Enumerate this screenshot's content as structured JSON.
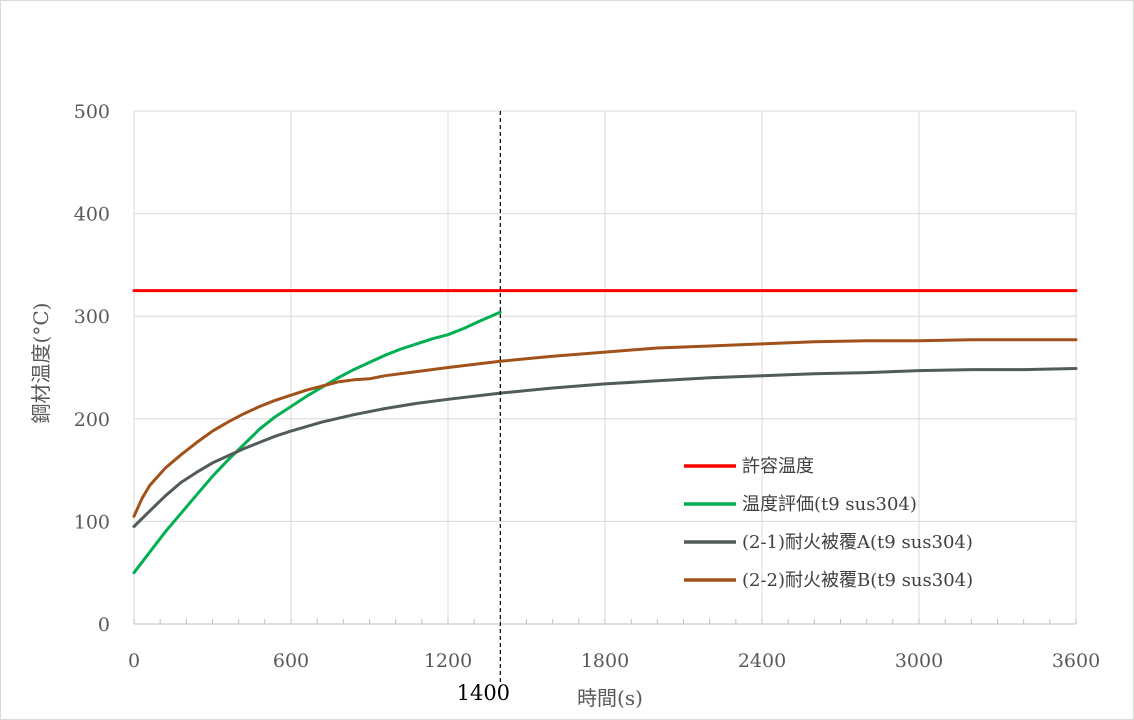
{
  "chart_data": {
    "type": "line",
    "title": "",
    "xlabel": "時間(s)",
    "ylabel": "鋼材温度(°C)",
    "xlim": [
      0,
      3600
    ],
    "ylim": [
      0,
      500
    ],
    "x_ticks": [
      0,
      600,
      1200,
      1800,
      2400,
      3000,
      3600
    ],
    "y_ticks": [
      0,
      100,
      200,
      300,
      400,
      500
    ],
    "x_minor_step": 100,
    "grid": true,
    "legend_position": "bottom-right",
    "annotations": [
      {
        "type": "vertical-dashed-line",
        "x": 1400,
        "label": "1400",
        "color": "#000000"
      }
    ],
    "series": [
      {
        "name": "許容温度",
        "color": "#ff0000",
        "points": [
          [
            0,
            325
          ],
          [
            3600,
            325
          ]
        ]
      },
      {
        "name": "温度評価(t9 sus304)",
        "color": "#00b050",
        "points": [
          [
            0,
            50
          ],
          [
            60,
            70
          ],
          [
            120,
            90
          ],
          [
            180,
            108
          ],
          [
            240,
            126
          ],
          [
            300,
            144
          ],
          [
            360,
            160
          ],
          [
            420,
            175
          ],
          [
            480,
            190
          ],
          [
            540,
            202
          ],
          [
            600,
            212
          ],
          [
            660,
            222
          ],
          [
            720,
            231
          ],
          [
            780,
            240
          ],
          [
            840,
            248
          ],
          [
            900,
            255
          ],
          [
            960,
            262
          ],
          [
            1020,
            268
          ],
          [
            1080,
            273
          ],
          [
            1140,
            278
          ],
          [
            1200,
            282
          ],
          [
            1260,
            288
          ],
          [
            1320,
            295
          ],
          [
            1400,
            304
          ]
        ]
      },
      {
        "name": "(2-1)耐火被覆A(t9 sus304)",
        "color": "#515c58",
        "points": [
          [
            0,
            95
          ],
          [
            60,
            110
          ],
          [
            120,
            125
          ],
          [
            180,
            138
          ],
          [
            240,
            148
          ],
          [
            300,
            157
          ],
          [
            360,
            164
          ],
          [
            420,
            171
          ],
          [
            480,
            177
          ],
          [
            540,
            183
          ],
          [
            600,
            188
          ],
          [
            720,
            197
          ],
          [
            840,
            204
          ],
          [
            960,
            210
          ],
          [
            1080,
            215
          ],
          [
            1200,
            219
          ],
          [
            1400,
            225
          ],
          [
            1600,
            230
          ],
          [
            1800,
            234
          ],
          [
            2000,
            237
          ],
          [
            2200,
            240
          ],
          [
            2400,
            242
          ],
          [
            2600,
            244
          ],
          [
            2800,
            245
          ],
          [
            3000,
            247
          ],
          [
            3200,
            248
          ],
          [
            3400,
            248
          ],
          [
            3600,
            249
          ]
        ]
      },
      {
        "name": "(2-2)耐火被覆B(t9 sus304)",
        "color": "#a0521a",
        "points": [
          [
            0,
            105
          ],
          [
            30,
            122
          ],
          [
            60,
            135
          ],
          [
            120,
            152
          ],
          [
            180,
            165
          ],
          [
            240,
            177
          ],
          [
            300,
            188
          ],
          [
            360,
            197
          ],
          [
            420,
            205
          ],
          [
            480,
            212
          ],
          [
            540,
            218
          ],
          [
            600,
            223
          ],
          [
            660,
            228
          ],
          [
            720,
            232
          ],
          [
            780,
            236
          ],
          [
            840,
            238
          ],
          [
            900,
            239
          ],
          [
            960,
            242
          ],
          [
            1080,
            246
          ],
          [
            1200,
            250
          ],
          [
            1400,
            256
          ],
          [
            1600,
            261
          ],
          [
            1800,
            265
          ],
          [
            2000,
            269
          ],
          [
            2200,
            271
          ],
          [
            2400,
            273
          ],
          [
            2600,
            275
          ],
          [
            2800,
            276
          ],
          [
            3000,
            276
          ],
          [
            3200,
            277
          ],
          [
            3400,
            277
          ],
          [
            3600,
            277
          ]
        ]
      }
    ]
  }
}
